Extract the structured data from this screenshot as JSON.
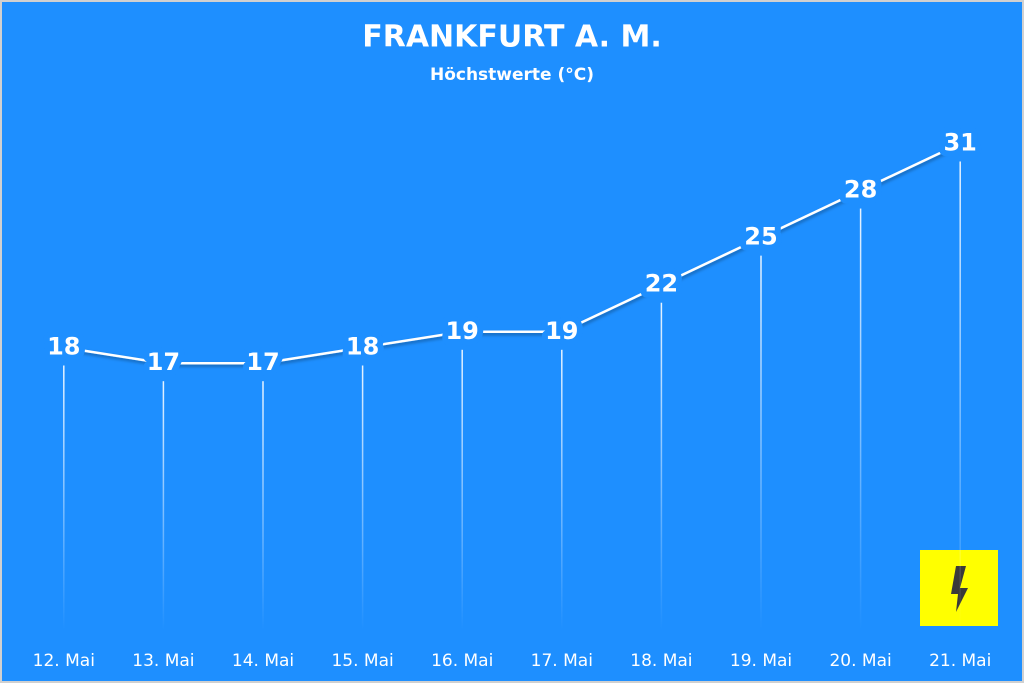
{
  "chart_data": {
    "type": "line",
    "title": "FRANKFURT A. M.",
    "subtitle": "Höchstwerte (°C)",
    "categories": [
      "12. Mai",
      "13. Mai",
      "14. Mai",
      "15. Mai",
      "16. Mai",
      "17. Mai",
      "18. Mai",
      "19. Mai",
      "20. Mai",
      "21. Mai"
    ],
    "values": [
      18,
      17,
      17,
      18,
      19,
      19,
      22,
      25,
      28,
      31
    ],
    "color": "#ffffff",
    "ylim": [
      0,
      36
    ]
  }
}
